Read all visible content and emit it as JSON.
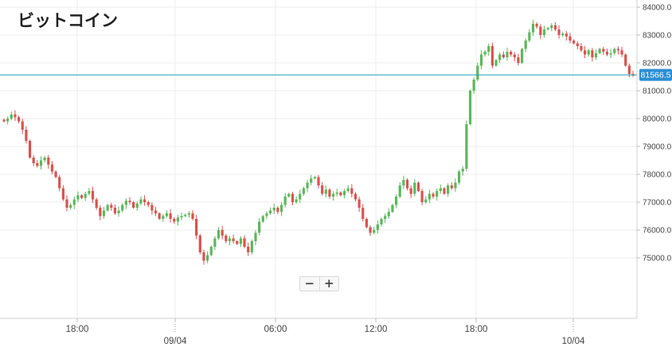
{
  "page": {
    "title": "ビットコイン"
  },
  "zoom": {
    "minus_label": "−",
    "plus_label": "+"
  },
  "colors": {
    "up": "#5cb85c",
    "down": "#d9534f",
    "price_line": "#1e9bb8",
    "price_tag": "#2b8fd6",
    "grid": "#ececec"
  },
  "chart_data": {
    "type": "candlestick",
    "ylim": [
      74000,
      84000
    ],
    "y_ticks": [
      "84000.0",
      "83000.0",
      "82000.0",
      "81000.0",
      "80000.0",
      "79000.0",
      "78000.0",
      "77000.0",
      "76000.0",
      "75000.0"
    ],
    "x_ticks": [
      "18:00",
      "09/04",
      "06:00",
      "12:00",
      "18:00",
      "10/04"
    ],
    "current_price": 81566.5,
    "current_price_label": "81566.5",
    "grid": true,
    "closes": [
      79900,
      80000,
      80150,
      80050,
      79900,
      79600,
      79200,
      78600,
      78400,
      78300,
      78500,
      78600,
      78350,
      78100,
      77900,
      77500,
      77100,
      76800,
      76900,
      77100,
      77250,
      77150,
      77300,
      77400,
      77100,
      76800,
      76500,
      76700,
      76900,
      76800,
      76600,
      76700,
      76900,
      77050,
      77000,
      76800,
      76950,
      77100,
      77000,
      76900,
      76700,
      76600,
      76400,
      76500,
      76600,
      76400,
      76300,
      76450,
      76500,
      76550,
      76600,
      76400,
      75800,
      75200,
      74900,
      75100,
      75400,
      75700,
      76000,
      75800,
      75600,
      75700,
      75600,
      75500,
      75700,
      75400,
      75200,
      75600,
      75900,
      76300,
      76500,
      76600,
      76700,
      76800,
      76650,
      76900,
      77200,
      77300,
      77000,
      77100,
      77300,
      77500,
      77700,
      77850,
      77900,
      77600,
      77300,
      77450,
      77200,
      77300,
      77350,
      77250,
      77400,
      77500,
      77300,
      77100,
      76800,
      76400,
      76100,
      75900,
      76000,
      76200,
      76400,
      76500,
      76650,
      76900,
      77200,
      77600,
      77800,
      77500,
      77300,
      77700,
      77400,
      77000,
      77100,
      77300,
      77200,
      77400,
      77500,
      77300,
      77600,
      77500,
      77700,
      78100,
      78200,
      79800,
      81000,
      81400,
      81900,
      82300,
      82400,
      82600,
      81900,
      82100,
      82300,
      82200,
      82400,
      82300,
      82200,
      82000,
      82500,
      82800,
      83100,
      83400,
      83300,
      83000,
      83200,
      83250,
      83350,
      83200,
      83000,
      83050,
      82950,
      82800,
      82700,
      82600,
      82450,
      82300,
      82450,
      82200,
      82350,
      82500,
      82400,
      82300,
      82350,
      82500,
      82450,
      82300,
      81900,
      81600,
      81550
    ]
  }
}
